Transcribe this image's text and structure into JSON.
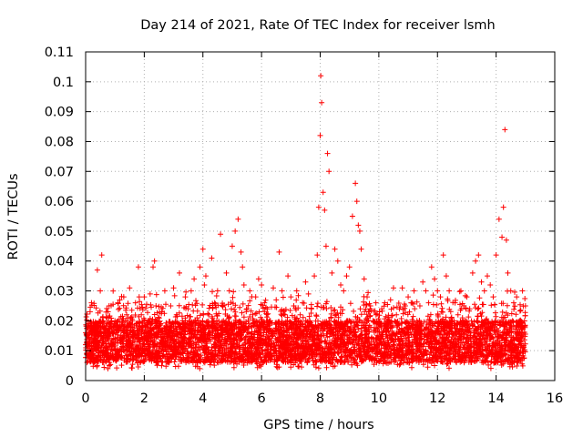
{
  "chart_data": {
    "type": "scatter",
    "title": "Day 214 of 2021, Rate Of TEC Index for receiver lsmh",
    "xlabel": "GPS time / hours",
    "ylabel": "ROTI / TECUs",
    "xlim": [
      0,
      16
    ],
    "ylim": [
      0,
      0.11
    ],
    "xticks": [
      0,
      2,
      4,
      6,
      8,
      10,
      12,
      14,
      16
    ],
    "yticks": [
      0,
      0.01,
      0.02,
      0.03,
      0.04,
      0.05,
      0.06,
      0.07,
      0.08,
      0.09,
      0.1,
      0.11
    ],
    "xtick_labels": [
      "0",
      "2",
      "4",
      "6",
      "8",
      "10",
      "12",
      "14",
      "16"
    ],
    "ytick_labels": [
      "0",
      "0.01",
      "0.02",
      "0.03",
      "0.04",
      "0.05",
      "0.06",
      "0.07",
      "0.08",
      "0.09",
      "0.1",
      "0.11"
    ],
    "grid": true,
    "marker": "plus",
    "series": [
      {
        "name": "ROTI",
        "color": "#ff0000",
        "x": [
          0.0,
          0.1,
          0.2,
          0.3,
          0.4,
          0.5,
          0.55,
          0.6,
          0.7,
          0.8,
          0.9,
          1.0,
          1.1,
          1.2,
          1.3,
          1.4,
          1.5,
          1.6,
          1.7,
          1.8,
          1.9,
          2.0,
          2.1,
          2.2,
          2.3,
          2.35,
          2.4,
          2.5,
          2.6,
          2.7,
          2.8,
          2.9,
          3.0,
          3.1,
          3.2,
          3.3,
          3.4,
          3.5,
          3.6,
          3.7,
          3.8,
          3.9,
          4.0,
          4.05,
          4.1,
          4.2,
          4.3,
          4.4,
          4.5,
          4.6,
          4.7,
          4.8,
          4.9,
          5.0,
          5.1,
          5.2,
          5.3,
          5.35,
          5.4,
          5.5,
          5.6,
          5.7,
          5.8,
          5.9,
          6.0,
          6.1,
          6.2,
          6.3,
          6.4,
          6.5,
          6.6,
          6.7,
          6.8,
          6.9,
          7.0,
          7.1,
          7.2,
          7.3,
          7.4,
          7.5,
          7.6,
          7.7,
          7.8,
          7.9,
          7.95,
          8.0,
          8.02,
          8.05,
          8.1,
          8.15,
          8.2,
          8.25,
          8.3,
          8.4,
          8.5,
          8.6,
          8.7,
          8.8,
          8.9,
          9.0,
          9.1,
          9.2,
          9.25,
          9.3,
          9.35,
          9.4,
          9.5,
          9.6,
          9.7,
          9.8,
          9.9,
          10.0,
          10.1,
          10.2,
          10.3,
          10.4,
          10.5,
          10.6,
          10.7,
          10.8,
          10.9,
          11.0,
          11.1,
          11.2,
          11.3,
          11.4,
          11.5,
          11.6,
          11.7,
          11.8,
          11.9,
          12.0,
          12.1,
          12.2,
          12.3,
          12.4,
          12.5,
          12.6,
          12.7,
          12.8,
          12.9,
          13.0,
          13.1,
          13.2,
          13.3,
          13.4,
          13.5,
          13.6,
          13.7,
          13.8,
          13.9,
          14.0,
          14.1,
          14.2,
          14.25,
          14.3,
          14.35,
          14.4,
          14.5,
          14.6,
          14.7,
          14.8,
          14.9,
          15.0
        ],
        "y": [
          0.012,
          0.018,
          0.026,
          0.015,
          0.037,
          0.03,
          0.042,
          0.02,
          0.011,
          0.025,
          0.018,
          0.02,
          0.026,
          0.015,
          0.028,
          0.022,
          0.031,
          0.02,
          0.026,
          0.038,
          0.022,
          0.028,
          0.018,
          0.029,
          0.038,
          0.04,
          0.025,
          0.016,
          0.023,
          0.03,
          0.018,
          0.025,
          0.031,
          0.022,
          0.036,
          0.02,
          0.028,
          0.024,
          0.03,
          0.034,
          0.021,
          0.038,
          0.044,
          0.032,
          0.035,
          0.022,
          0.041,
          0.026,
          0.03,
          0.049,
          0.02,
          0.036,
          0.03,
          0.045,
          0.05,
          0.054,
          0.043,
          0.038,
          0.032,
          0.024,
          0.03,
          0.022,
          0.028,
          0.034,
          0.032,
          0.026,
          0.024,
          0.02,
          0.031,
          0.027,
          0.043,
          0.03,
          0.022,
          0.035,
          0.028,
          0.025,
          0.03,
          0.02,
          0.026,
          0.033,
          0.029,
          0.024,
          0.035,
          0.042,
          0.058,
          0.082,
          0.102,
          0.093,
          0.063,
          0.057,
          0.045,
          0.076,
          0.07,
          0.036,
          0.044,
          0.04,
          0.032,
          0.03,
          0.035,
          0.038,
          0.055,
          0.066,
          0.06,
          0.052,
          0.05,
          0.044,
          0.034,
          0.028,
          0.024,
          0.02,
          0.026,
          0.018,
          0.024,
          0.026,
          0.02,
          0.027,
          0.031,
          0.022,
          0.024,
          0.031,
          0.025,
          0.028,
          0.026,
          0.03,
          0.02,
          0.025,
          0.033,
          0.03,
          0.026,
          0.038,
          0.034,
          0.03,
          0.028,
          0.042,
          0.035,
          0.03,
          0.02,
          0.026,
          0.022,
          0.03,
          0.025,
          0.028,
          0.024,
          0.036,
          0.04,
          0.042,
          0.033,
          0.03,
          0.035,
          0.032,
          0.028,
          0.042,
          0.054,
          0.048,
          0.058,
          0.084,
          0.047,
          0.036,
          0.03,
          0.026,
          0.028,
          0.02,
          0.03,
          0.025
        ]
      }
    ]
  }
}
